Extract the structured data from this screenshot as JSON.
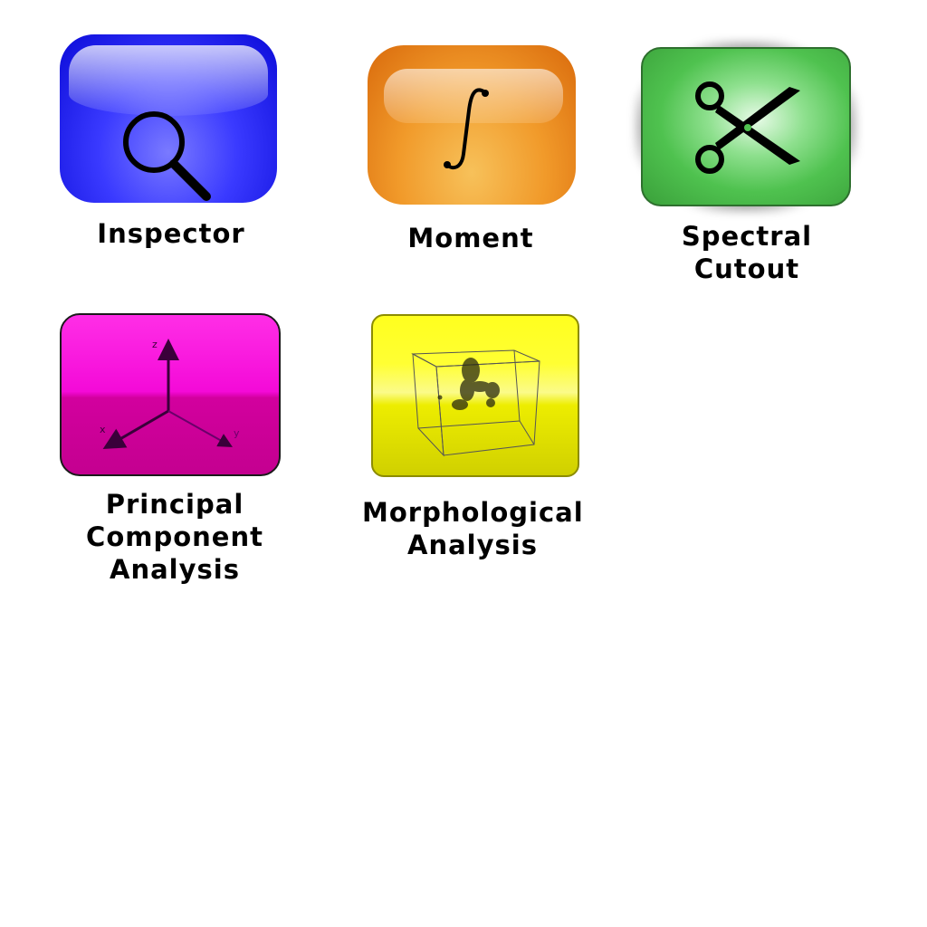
{
  "tools": [
    {
      "id": "inspector",
      "label_lines": [
        "Inspector"
      ],
      "icon": "magnifier-icon",
      "color": "#1a1aff"
    },
    {
      "id": "moment",
      "label_lines": [
        "Moment"
      ],
      "icon": "integral-icon",
      "color": "#f19a2a"
    },
    {
      "id": "spectral_cutout",
      "label_lines": [
        "Spectral",
        "Cutout"
      ],
      "icon": "scissors-icon",
      "color": "#4fc24f"
    },
    {
      "id": "pca",
      "label_lines": [
        "Principal",
        "Component",
        "Analysis"
      ],
      "icon": "axes-3d-icon",
      "color": "#f40ad8",
      "axis_labels": [
        "z",
        "x",
        "y"
      ]
    },
    {
      "id": "morphological",
      "label_lines": [
        "Morphological",
        "Analysis"
      ],
      "icon": "volume-cube-icon",
      "color": "#ffff1e"
    }
  ]
}
